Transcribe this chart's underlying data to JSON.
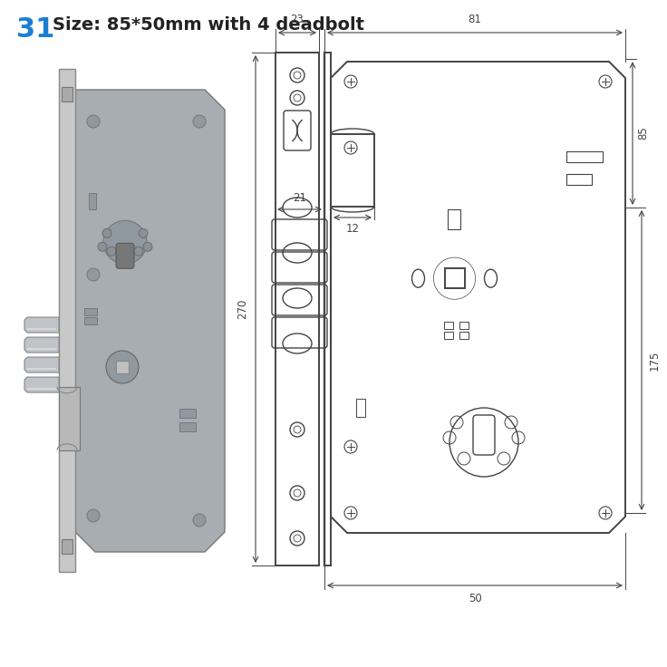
{
  "title_num": "31",
  "title_text": "Size: 85*50mm with 4 deadbolt",
  "title_num_color": "#1a7fd4",
  "title_text_color": "#222222",
  "line_color": "#444444",
  "bg_color": "#ffffff",
  "dim_color": "#444444",
  "dim_23": "23",
  "dim_81": "81",
  "dim_270": "270",
  "dim_175": "175",
  "dim_85": "85",
  "dim_50": "50",
  "dim_12": "12",
  "dim_21": "21"
}
